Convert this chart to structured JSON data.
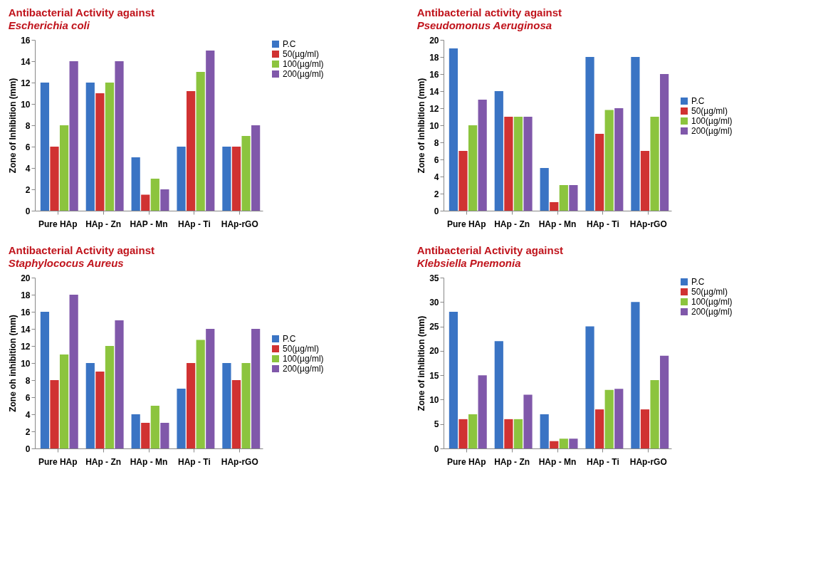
{
  "chart_data": [
    {
      "type": "bar",
      "title": "Antibacterial Activity against",
      "subtitle": "Escherichia  coli",
      "ylabel": "Zone of Inhibition (mm)",
      "categories": [
        "Pure HAp",
        "HAp - Zn",
        "HAP - Mn",
        "HAp - Ti",
        "HAp-rGO"
      ],
      "ylim": [
        0,
        16
      ],
      "yticks": [
        0,
        2,
        4,
        6,
        8,
        10,
        12,
        14,
        16
      ],
      "grid": false,
      "legend": "top right",
      "series": [
        {
          "name": "P.C",
          "color": "#3a74c4",
          "values": [
            12,
            12,
            5,
            6,
            6
          ]
        },
        {
          "name": "50(µg/ml)",
          "color": "#d03232",
          "values": [
            6,
            11,
            1.5,
            11.2,
            6
          ]
        },
        {
          "name": "100(µg/ml)",
          "color": "#8cc43e",
          "values": [
            8,
            12,
            3,
            13,
            7
          ]
        },
        {
          "name": "200(µg/ml)",
          "color": "#8058aa",
          "values": [
            14,
            14,
            2,
            15,
            8
          ]
        }
      ]
    },
    {
      "type": "bar",
      "title": "Antibacterial activity against",
      "subtitle": "Pseudomonus Aeruginosa",
      "ylabel": "Zone of inhibition (mm)",
      "categories": [
        "Pure HAp",
        "HAp - Zn",
        "HAp - Mn",
        "HAp - Ti",
        "HAp-rGO"
      ],
      "ylim": [
        0,
        20
      ],
      "yticks": [
        0,
        2,
        4,
        6,
        8,
        10,
        12,
        14,
        16,
        18,
        20
      ],
      "grid": false,
      "legend": "right",
      "series": [
        {
          "name": "P.C",
          "color": "#3a74c4",
          "values": [
            19,
            14,
            5,
            18,
            18
          ]
        },
        {
          "name": "50(µg/ml)",
          "color": "#d03232",
          "values": [
            7,
            11,
            1,
            9,
            7
          ]
        },
        {
          "name": "100(µg/ml)",
          "color": "#8cc43e",
          "values": [
            10,
            11,
            3,
            11.8,
            11
          ]
        },
        {
          "name": "200(µg/ml)",
          "color": "#8058aa",
          "values": [
            13,
            11,
            3,
            12,
            16
          ]
        }
      ]
    },
    {
      "type": "bar",
      "title": "Antibacterial Activity against",
      "subtitle": "Staphylococus  Aureus",
      "ylabel": "Zone oh inhibition (mm)",
      "categories": [
        "Pure HAp",
        "HAp - Zn",
        "HAp - Mn",
        "HAp - Ti",
        "HAp-rGO"
      ],
      "ylim": [
        0,
        20
      ],
      "yticks": [
        0,
        2,
        4,
        6,
        8,
        10,
        12,
        14,
        16,
        18,
        20
      ],
      "grid": false,
      "legend": "right",
      "series": [
        {
          "name": "P.C",
          "color": "#3a74c4",
          "values": [
            16,
            10,
            4,
            7,
            10
          ]
        },
        {
          "name": "50(µg/ml)",
          "color": "#d03232",
          "values": [
            8,
            9,
            3,
            10,
            8
          ]
        },
        {
          "name": "100(µg/ml)",
          "color": "#8cc43e",
          "values": [
            11,
            12,
            5,
            12.7,
            10
          ]
        },
        {
          "name": "200(µg/ml)",
          "color": "#8058aa",
          "values": [
            18,
            15,
            3,
            14,
            14
          ]
        }
      ]
    },
    {
      "type": "bar",
      "title": "Antibacterial Activity against",
      "subtitle": "Klebsiella Pnemonia",
      "ylabel": "Zone of inhibition (mm)",
      "categories": [
        "Pure HAp",
        "HAp - Zn",
        "HAp - Mn",
        "HAp - Ti",
        "HAp-rGO"
      ],
      "ylim": [
        0,
        35
      ],
      "yticks": [
        0,
        5,
        10,
        15,
        20,
        25,
        30,
        35
      ],
      "grid": false,
      "legend": "top right",
      "series": [
        {
          "name": "P.C",
          "color": "#3a74c4",
          "values": [
            28,
            22,
            7,
            25,
            30
          ]
        },
        {
          "name": "50(µg/ml)",
          "color": "#d03232",
          "values": [
            6,
            6,
            1.5,
            8,
            8
          ]
        },
        {
          "name": "100(µg/ml)",
          "color": "#8cc43e",
          "values": [
            7,
            6,
            2,
            12,
            14
          ]
        },
        {
          "name": "200(µg/ml)",
          "color": "#8058aa",
          "values": [
            15,
            11,
            2,
            12.2,
            19
          ]
        }
      ]
    }
  ]
}
